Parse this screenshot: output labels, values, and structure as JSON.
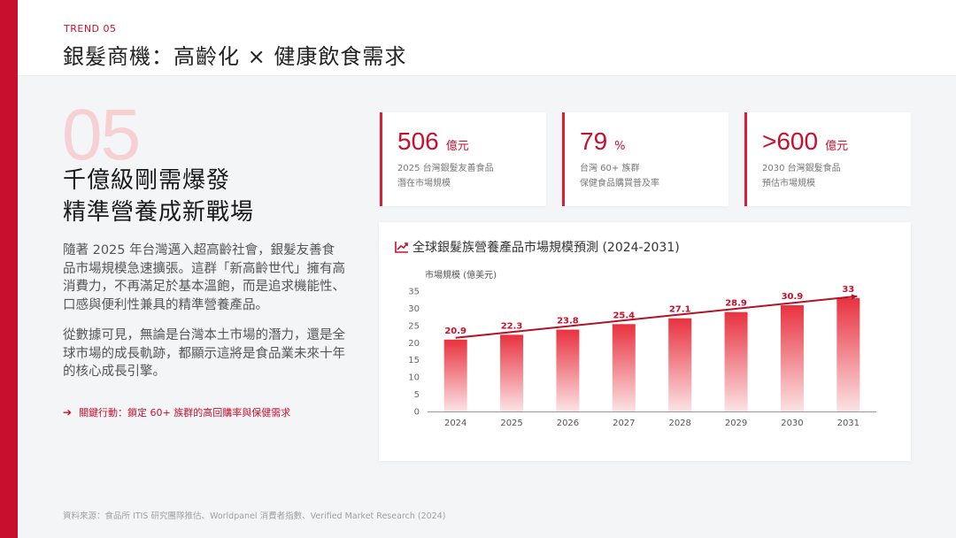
{
  "header": {
    "trend_label": "TREND 05",
    "title": "銀髮商機：高齡化 × 健康飲食需求"
  },
  "left": {
    "big_number": "05",
    "headline_line1": "千億級剛需爆發",
    "headline_line2": "精準營養成新戰場",
    "paragraph1": "隨著 2025 年台灣邁入超高齡社會，銀髮友善食品市場規模急速擴張。這群「新高齡世代」擁有高消費力，不再滿足於基本溫飽，而是追求機能性、口感與便利性兼具的精準營養產品。",
    "paragraph2": "從數據可見，無論是台灣本土市場的潛力，還是全球市場的成長軌跡，都顯示這將是食品業未來十年的核心成長引擎。",
    "key_action": "關鍵行動：鎖定 60+ 族群的高回購率與保健需求"
  },
  "kpis": [
    {
      "value": "506",
      "unit": "億元",
      "desc_line1": "2025 台灣銀髮友善食品",
      "desc_line2": "潛在市場規模"
    },
    {
      "value": "79",
      "unit": "%",
      "desc_line1": "台灣 60+ 族群",
      "desc_line2": "保健食品購買普及率"
    },
    {
      "value": ">600",
      "unit": "億元",
      "desc_line1": "2030 台灣銀髮食品",
      "desc_line2": "預估市場規模"
    }
  ],
  "source": "資料來源：食品所 ITIS 研究團隊推估、Worldpanel 消費者指數、Verified Market Research (2024)",
  "colors": {
    "accent": "#c8102e",
    "bar_top": "#e8323f",
    "bar_bottom": "#fbe3e5",
    "faint_number": "#f6d0d3"
  },
  "icons": {
    "chart_title_icon": "trend-line-icon",
    "key_action_icon": "arrow-right-icon"
  },
  "chart_data": {
    "type": "bar",
    "title": "全球銀髮族營養產品市場規模預測 (2024-2031)",
    "ylabel": "市場規模 (億美元)",
    "xlabel": "",
    "categories": [
      "2024",
      "2025",
      "2026",
      "2027",
      "2028",
      "2029",
      "2030",
      "2031"
    ],
    "values": [
      20.9,
      22.3,
      23.8,
      25.4,
      27.1,
      28.9,
      30.9,
      33
    ],
    "value_labels": [
      "20.9",
      "22.3",
      "23.8",
      "25.4",
      "27.1",
      "28.9",
      "30.9",
      "33"
    ],
    "ylim": [
      0,
      35
    ],
    "yticks": [
      "0",
      "5",
      "10",
      "15",
      "20",
      "25",
      "30",
      "35"
    ],
    "trend_line": true,
    "grid": false
  }
}
